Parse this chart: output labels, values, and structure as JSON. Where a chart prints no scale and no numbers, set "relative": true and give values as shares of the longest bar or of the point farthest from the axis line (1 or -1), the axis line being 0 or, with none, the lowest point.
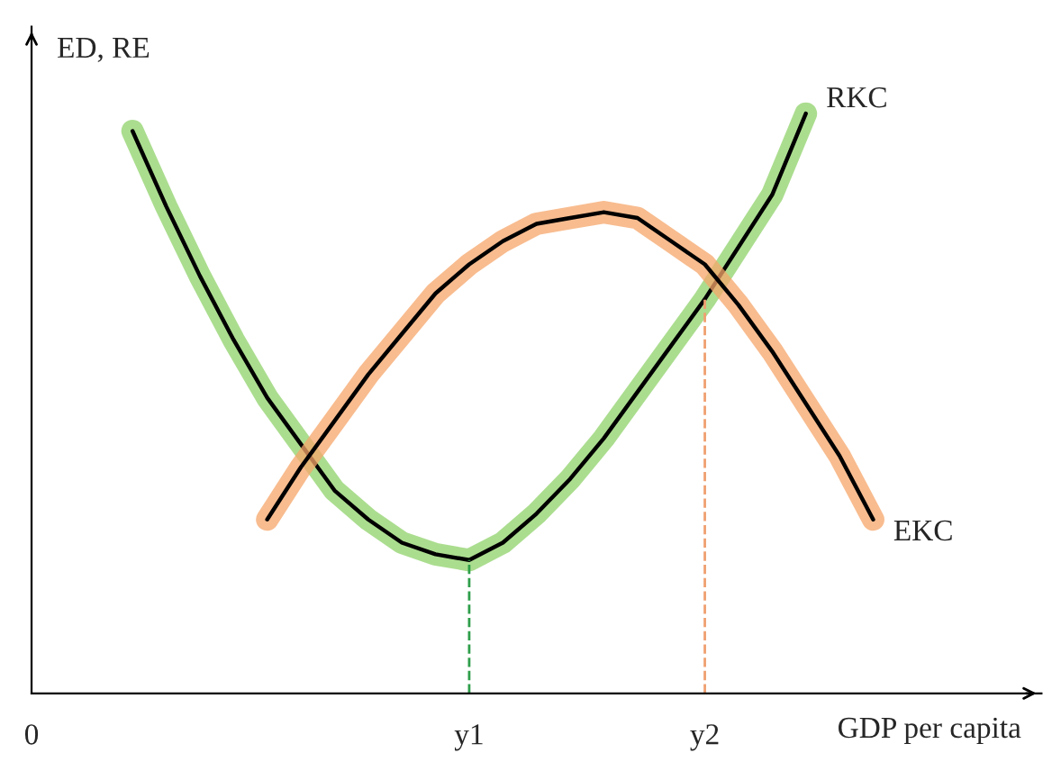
{
  "chart_data": {
    "type": "line",
    "relative": true,
    "xlabel": "GDP per capita",
    "ylabel": "ED, RE",
    "categories": [
      "0",
      null,
      null,
      null,
      null,
      null,
      null,
      null,
      null,
      null,
      null,
      null,
      null,
      "y1",
      null,
      null,
      null,
      null,
      null,
      null,
      "y2",
      null,
      null,
      null,
      null,
      null,
      null,
      null,
      null,
      null,
      null
    ],
    "series": [
      {
        "name": "RKC",
        "color": "#8fd16a",
        "values": [
          null,
          null,
          null,
          0.97,
          0.84,
          0.72,
          0.61,
          0.51,
          0.43,
          0.35,
          0.3,
          0.26,
          0.24,
          0.23,
          0.26,
          0.31,
          0.37,
          0.44,
          0.52,
          0.6,
          0.68,
          0.77,
          0.86,
          1.0,
          null,
          null,
          null,
          null,
          null,
          null,
          null
        ]
      },
      {
        "name": "EKC",
        "color": "#f5a56a",
        "values": [
          null,
          null,
          null,
          null,
          null,
          null,
          null,
          0.3,
          0.39,
          0.47,
          0.55,
          0.62,
          0.69,
          0.74,
          0.78,
          0.81,
          0.82,
          0.83,
          0.82,
          0.78,
          0.74,
          0.67,
          0.59,
          0.5,
          0.41,
          0.3,
          null,
          null,
          null,
          null,
          null
        ]
      }
    ],
    "ref_lines": [
      {
        "axis": "x",
        "value": "y1",
        "color": "#2e9e4a",
        "line_style": "dashed"
      },
      {
        "axis": "x",
        "value": "y2",
        "color": "#f0a070",
        "line_style": "dashed"
      }
    ],
    "grid": false,
    "legend": false,
    "marker": "none",
    "line_style": "solid"
  }
}
